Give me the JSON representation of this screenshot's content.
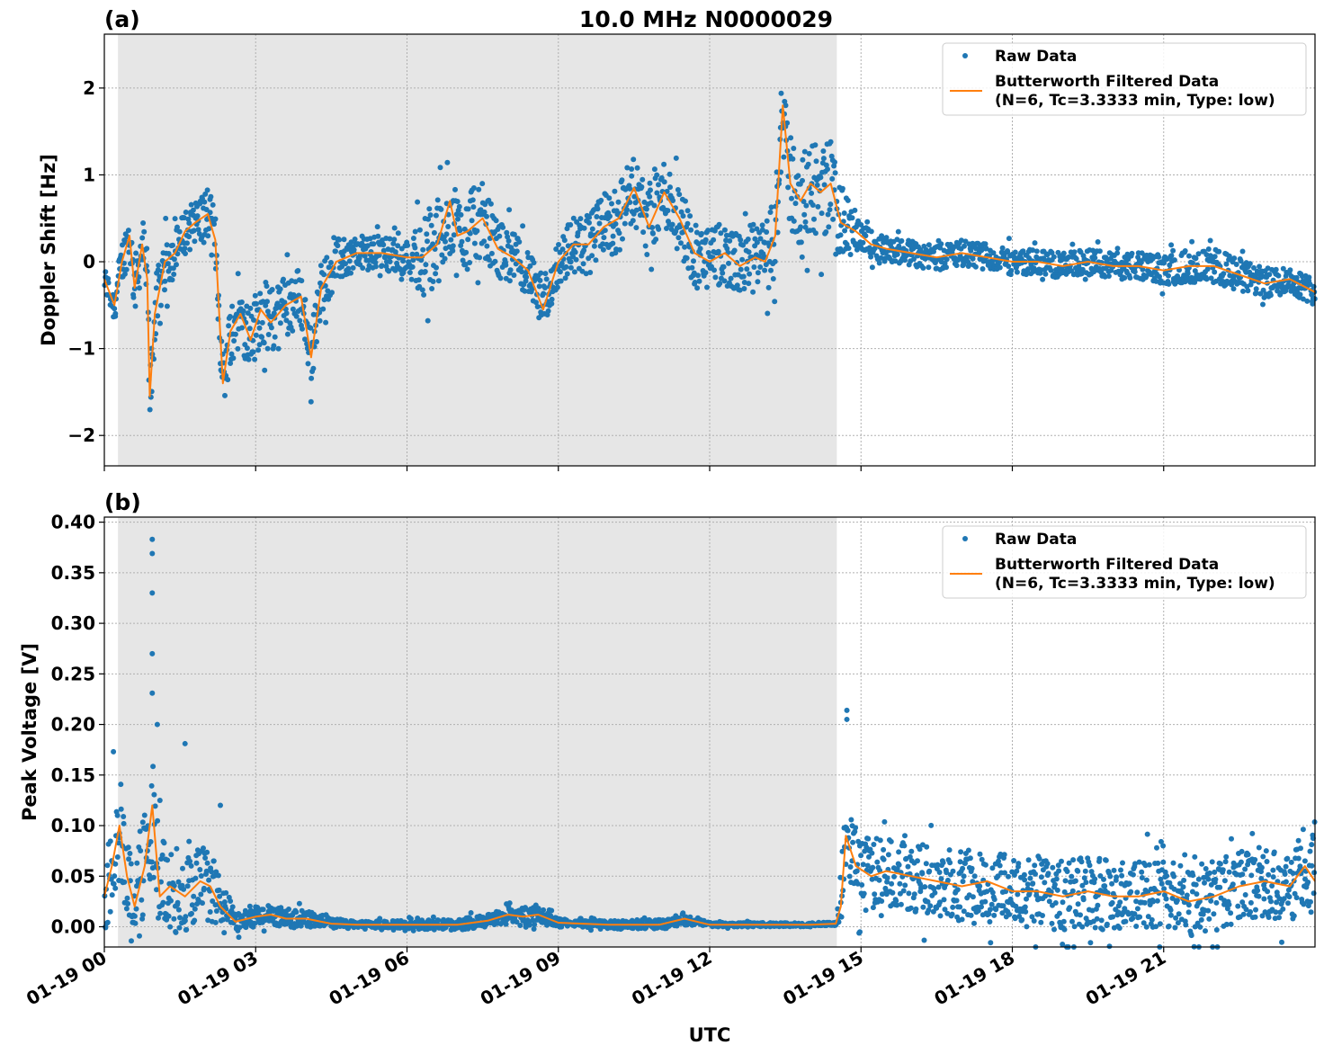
{
  "figure": {
    "title": "10.0 MHz N0000029",
    "xlabel": "UTC"
  },
  "colors": {
    "raw": "#1f77b4",
    "filtered": "#ff7f0e",
    "shade": "#e6e6e6",
    "grid": "#b0b0b0"
  },
  "chart_data": [
    {
      "type": "scatter",
      "panel_label": "(a)",
      "ylabel": "Doppler Shift [Hz]",
      "xlim_hours": [
        0,
        24
      ],
      "ylim": [
        -2.35,
        2.62
      ],
      "yticks": [
        -2,
        -1,
        0,
        1,
        2
      ],
      "ytick_labels": [
        "−2",
        "−1",
        "0",
        "1",
        "2"
      ],
      "x_tick_labels": [
        "01-19 00",
        "01-19 03",
        "01-19 06",
        "01-19 09",
        "01-19 12",
        "01-19 15",
        "01-19 18",
        "01-19 21"
      ],
      "x_tick_hours": [
        0,
        3,
        6,
        9,
        12,
        15,
        18,
        21
      ],
      "grid": true,
      "legend_position": "top-right",
      "legend": [
        "Raw Data",
        "Butterworth Filtered Data",
        "(N=6, Tc=3.3333 min, Type: low)"
      ],
      "shaded_interval_hours": [
        0.27,
        14.52
      ],
      "series": [
        {
          "name": "Butterworth Filtered Data",
          "x_hours": [
            0,
            0.2,
            0.35,
            0.5,
            0.6,
            0.75,
            0.85,
            0.9,
            1.0,
            1.2,
            1.4,
            1.6,
            1.8,
            2.05,
            2.2,
            2.35,
            2.5,
            2.7,
            2.9,
            3.1,
            3.3,
            3.6,
            3.9,
            4.1,
            4.3,
            4.6,
            5.0,
            5.5,
            6.0,
            6.3,
            6.6,
            6.85,
            7.0,
            7.2,
            7.5,
            7.8,
            8.1,
            8.4,
            8.7,
            9.0,
            9.3,
            9.6,
            9.9,
            10.2,
            10.5,
            10.8,
            11.1,
            11.4,
            11.7,
            12.0,
            12.3,
            12.6,
            12.9,
            13.1,
            13.3,
            13.45,
            13.6,
            13.8,
            14.0,
            14.2,
            14.4,
            14.6,
            14.9,
            15.2,
            15.5,
            16.0,
            16.5,
            17.0,
            17.5,
            18.0,
            18.5,
            19.0,
            19.5,
            20.0,
            20.5,
            21.0,
            21.5,
            22.0,
            22.5,
            23.0,
            23.5,
            24.0
          ],
          "y": [
            -0.2,
            -0.5,
            0.0,
            0.3,
            -0.3,
            0.2,
            -0.2,
            -1.55,
            -0.6,
            0.0,
            0.1,
            0.35,
            0.45,
            0.55,
            0.25,
            -1.4,
            -0.8,
            -0.6,
            -0.9,
            -0.55,
            -0.7,
            -0.5,
            -0.4,
            -1.1,
            -0.3,
            0.0,
            0.1,
            0.1,
            0.05,
            0.05,
            0.2,
            0.7,
            0.3,
            0.35,
            0.5,
            0.15,
            0.05,
            -0.1,
            -0.55,
            0.0,
            0.2,
            0.2,
            0.4,
            0.5,
            0.85,
            0.4,
            0.8,
            0.5,
            0.1,
            0.0,
            0.1,
            -0.05,
            0.05,
            0.0,
            0.3,
            1.8,
            0.9,
            0.7,
            0.9,
            0.8,
            0.9,
            0.45,
            0.35,
            0.2,
            0.15,
            0.1,
            0.05,
            0.1,
            0.05,
            0.0,
            0.0,
            -0.05,
            0.0,
            -0.05,
            -0.05,
            -0.1,
            -0.05,
            -0.05,
            -0.15,
            -0.25,
            -0.2,
            -0.35
          ]
        },
        {
          "name": "Raw Data",
          "spread_envelope": {
            "x_hours": [
              0,
              0.9,
              1.5,
              2.3,
              3.0,
              4.0,
              5.0,
              6.0,
              6.5,
              7.3,
              8.0,
              8.7,
              9.5,
              10.5,
              11.5,
              12.5,
              13.4,
              13.6,
              14.5,
              15.0,
              16.5,
              18.0,
              20.0,
              22.0,
              24.0
            ],
            "half_width": [
              0.15,
              0.4,
              0.25,
              0.35,
              0.4,
              0.35,
              0.2,
              0.2,
              0.6,
              0.45,
              0.3,
              0.25,
              0.35,
              0.4,
              0.4,
              0.35,
              0.5,
              0.6,
              0.5,
              0.15,
              0.15,
              0.15,
              0.15,
              0.2,
              0.15
            ]
          }
        }
      ]
    },
    {
      "type": "scatter",
      "panel_label": "(b)",
      "ylabel": "Peak Voltage [V]",
      "xlim_hours": [
        0,
        24
      ],
      "ylim": [
        -0.02,
        0.405
      ],
      "yticks": [
        0,
        0.05,
        0.1,
        0.15,
        0.2,
        0.25,
        0.3,
        0.35,
        0.4
      ],
      "ytick_labels": [
        "0.00",
        "0.05",
        "0.10",
        "0.15",
        "0.20",
        "0.25",
        "0.30",
        "0.35",
        "0.40"
      ],
      "x_tick_labels": [
        "01-19 00",
        "01-19 03",
        "01-19 06",
        "01-19 09",
        "01-19 12",
        "01-19 15",
        "01-19 18",
        "01-19 21"
      ],
      "x_tick_hours": [
        0,
        3,
        6,
        9,
        12,
        15,
        18,
        21
      ],
      "grid": true,
      "legend_position": "top-right",
      "legend": [
        "Raw Data",
        "Butterworth Filtered Data",
        "(N=6, Tc=3.3333 min, Type: low)"
      ],
      "shaded_interval_hours": [
        0.27,
        14.52
      ],
      "series": [
        {
          "name": "Butterworth Filtered Data",
          "x_hours": [
            0,
            0.15,
            0.3,
            0.45,
            0.6,
            0.8,
            0.95,
            1.1,
            1.3,
            1.6,
            1.9,
            2.1,
            2.3,
            2.6,
            3.0,
            3.3,
            3.6,
            4.0,
            4.5,
            5.0,
            6.0,
            7.0,
            7.6,
            8.0,
            8.3,
            8.6,
            9.0,
            10.0,
            11.0,
            11.5,
            12.0,
            13.0,
            14.0,
            14.5,
            14.6,
            14.7,
            14.9,
            15.2,
            15.5,
            16.0,
            16.5,
            17.0,
            17.5,
            18.0,
            18.5,
            19.0,
            19.5,
            20.0,
            20.5,
            21.0,
            21.5,
            22.0,
            22.5,
            23.0,
            23.5,
            23.8,
            24.0
          ],
          "y": [
            0.03,
            0.06,
            0.1,
            0.05,
            0.02,
            0.06,
            0.12,
            0.03,
            0.04,
            0.03,
            0.045,
            0.04,
            0.02,
            0.005,
            0.01,
            0.012,
            0.008,
            0.008,
            0.003,
            0.002,
            0.002,
            0.002,
            0.006,
            0.012,
            0.01,
            0.012,
            0.004,
            0.002,
            0.002,
            0.008,
            0.002,
            0.002,
            0.002,
            0.003,
            0.02,
            0.09,
            0.06,
            0.05,
            0.055,
            0.05,
            0.045,
            0.04,
            0.045,
            0.035,
            0.035,
            0.03,
            0.035,
            0.03,
            0.03,
            0.035,
            0.025,
            0.03,
            0.04,
            0.045,
            0.04,
            0.06,
            0.045
          ]
        },
        {
          "name": "Raw Data",
          "spread_envelope": {
            "x_hours": [
              0,
              0.5,
              1.0,
              1.5,
              2.2,
              2.6,
              3.5,
              4.5,
              5.0,
              7.5,
              8.5,
              9.2,
              11.5,
              12.0,
              14.5,
              14.7,
              15.5,
              17.0,
              19.0,
              21.0,
              23.0,
              24.0
            ],
            "half_width": [
              0.04,
              0.05,
              0.06,
              0.04,
              0.035,
              0.01,
              0.01,
              0.006,
              0.003,
              0.006,
              0.01,
              0.003,
              0.006,
              0.002,
              0.002,
              0.04,
              0.035,
              0.035,
              0.035,
              0.035,
              0.035,
              0.04
            ]
          },
          "spikes": [
            {
              "hour": 0.95,
              "value": 0.383
            },
            {
              "hour": 0.95,
              "value": 0.369
            },
            {
              "hour": 0.95,
              "value": 0.33
            },
            {
              "hour": 0.95,
              "value": 0.27
            },
            {
              "hour": 0.95,
              "value": 0.231
            },
            {
              "hour": 1.05,
              "value": 0.2
            },
            {
              "hour": 1.6,
              "value": 0.181
            },
            {
              "hour": 0.18,
              "value": 0.173
            },
            {
              "hour": 2.3,
              "value": 0.12
            },
            {
              "hour": 14.72,
              "value": 0.214
            },
            {
              "hour": 14.72,
              "value": 0.205
            }
          ]
        }
      ]
    }
  ]
}
